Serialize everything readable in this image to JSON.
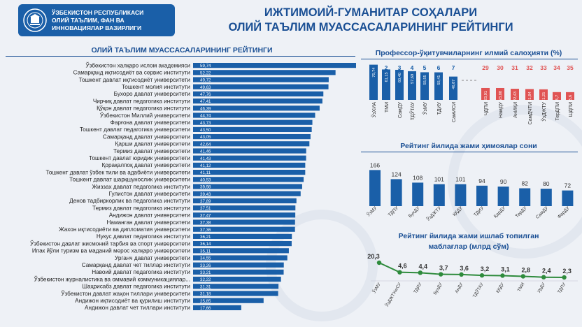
{
  "header": {
    "ministry_lines": [
      "ЎЗБЕКИСТОН РЕСПУБЛИКАСИ",
      "ОЛИЙ ТАЪЛИМ, ФАН ВА",
      "ИННОВАЦИЯЛАР ВАЗИРЛИГИ"
    ],
    "title_lines": [
      "ИЖТИМОИЙ-ГУМАНИТАР СОҲАЛАРИ",
      "ОЛИЙ ТАЪЛИМ МУАССАСАЛАРИНИНГ РЕЙТИНГИ"
    ]
  },
  "colors": {
    "primary": "#1a4f94",
    "bar_blue": "#1a5fa8",
    "accent_red": "#e05454",
    "line_green": "#2e8b3c",
    "header_bg": "#1a5fa8"
  },
  "chart_data": [
    {
      "type": "bar",
      "orientation": "horizontal",
      "title": "ОЛИЙ ТАЪЛИМ МУАССАСАЛАРИНИНГ РЕЙТИНГИ",
      "categories": [
        "Ўзбекистон халқаро ислом академияси",
        "Самарқанд иқтисодиёт ва сервис институти",
        "Тошкент давлат иқтисодиёт университети",
        "Тошкент молия институти",
        "Бухоро давлат университети",
        "Чирчиқ давлат педагогика институти",
        "Қўқон давлат педагогика институти",
        "Ўзбекистон Миллий университети",
        "Фарғона давлат университети",
        "Тошкент давлат педагогика университети",
        "Самарқанд давлат университети",
        "Қарши давлат университети",
        "Термиз давлат университети",
        "Тошкент давлат юридик университети",
        "Қорақалпоқ давлат университети",
        "Тошкент давлат ўзбек тили ва адабиёти университети",
        "Тошкент давлат шарқшунослик университети",
        "Жиззах давлат педагогика институти",
        "Гулистон давлат университети",
        "Денов тадбиркорлик ва педагогика институти",
        "Термиз давлат педагогика институти",
        "Андижон давлат университети",
        "Наманган давлат университети",
        "Жахон иқтисодиёти ва дипломатия университети",
        "Нукус давлат педагогика институти",
        "Ўзбекистон давлат жисмоний тарбия ва спорт университети",
        "Ипак йўли туризм ва маданий мерос халқаро университети",
        "Урганч давлат университети",
        "Самарқанд давлат чет тиллар институти",
        "Навоий давлат педагогика институти",
        "Ўзбекистон журналистика ва оммавий коммуникациялар...",
        "Шаҳрисабз давлат педагогика институти",
        "Ўзбекистон давлат жаҳон тиллари университети",
        "Андижон иқтисодиёт ва қурилиш институти",
        "Андижон давлат чет тиллари институти"
      ],
      "values": [
        59.74,
        52.22,
        49.72,
        49.63,
        47.76,
        47.41,
        46.39,
        44.74,
        43.73,
        43.5,
        43.05,
        42.64,
        41.46,
        41.43,
        41.12,
        41.11,
        40.53,
        39.98,
        39.43,
        37.89,
        37.51,
        37.47,
        37.38,
        37.36,
        36.21,
        36.14,
        35.11,
        34.55,
        33.26,
        33.21,
        32.22,
        31.31,
        31.18,
        25.85,
        17.66
      ],
      "value_labels": [
        "59,74",
        "52,22",
        "49,72",
        "49,63",
        "47,76",
        "47,41",
        "46,39",
        "44,74",
        "43,73",
        "43,50",
        "43,05",
        "42,64",
        "41,46",
        "41,43",
        "41,12",
        "41,11",
        "40,53",
        "39,98",
        "39,43",
        "37,89",
        "37,51",
        "37,47",
        "37,38",
        "37,36",
        "36,21",
        "36,14",
        "35,11",
        "34,55",
        "33,26",
        "33,21",
        "32,22",
        "31,31",
        "31,18",
        "25,85",
        "17,66"
      ],
      "xlim": [
        0,
        60
      ]
    },
    {
      "type": "bar",
      "title": "Профессор-ўқитувчиларнинг илмий салоҳияти (%)",
      "top_group": {
        "ranks": [
          "1",
          "2",
          "3",
          "4",
          "5",
          "6",
          "7"
        ],
        "categories": [
          "ЎзХИА",
          "ТМИ",
          "СамДУ",
          "ТДЎТАУ",
          "ЎзМУ",
          "ТДИУ",
          "СамИСИ"
        ],
        "values": [
          70.74,
          61.15,
          60.4,
          57.69,
          55.55,
          55.41,
          46.87
        ],
        "value_labels": [
          "70,74",
          "61,15",
          "60,40",
          "57,69",
          "55,55",
          "55,41",
          "46,87"
        ],
        "color": "#1a5fa8"
      },
      "bottom_group": {
        "ranks": [
          "29",
          "30",
          "31",
          "32",
          "33",
          "34",
          "35"
        ],
        "categories": [
          "ЧДПИ",
          "НамДУ",
          "АнИҚИ",
          "СамДЧТИ",
          "ЎзДЖТУ",
          "ТерДПИ",
          "ШДПИ"
        ],
        "values": [
          23.91,
          23.88,
          22.43,
          21.84,
          21.25,
          15.7,
          15.6
        ],
        "value_labels": [
          "23,91",
          "23,88",
          "22,43",
          "21,84",
          "21,25",
          "15,7",
          "15,6"
        ],
        "color": "#e05454"
      },
      "ylim": [
        0,
        80
      ]
    },
    {
      "type": "bar",
      "title": "Рейтинг йилида жами ҳимоялар сони",
      "categories": [
        "ЎзМУ",
        "ТДПУ",
        "БухДУ",
        "ЎзДЖТУ",
        "ҚҚДУ",
        "ТДИУ",
        "ҚарДУ",
        "ТерДУ",
        "СамДУ",
        "ФарДУ"
      ],
      "values": [
        166,
        124,
        108,
        101,
        101,
        94,
        90,
        82,
        80,
        72
      ],
      "ylim": [
        0,
        180
      ]
    },
    {
      "type": "line",
      "title": "Рейтинг йилида жами ишлаб топилган маблағлар (млрд сўм)",
      "categories": [
        "ЎзМУ",
        "ЎзДЖТУнгСУ",
        "ТДИУ",
        "БухДУ",
        "АнДУ",
        "ТДЎТАУ",
        "ҚҚДУ",
        "ТМИ",
        "УрДУ",
        "ТДПУ"
      ],
      "values": [
        20.3,
        4.6,
        4.4,
        3.7,
        3.6,
        3.2,
        3.1,
        2.8,
        2.4,
        2.3
      ],
      "value_labels": [
        "20,3",
        "4,6",
        "4,4",
        "3,7",
        "3,6",
        "3,2",
        "3,1",
        "2,8",
        "2,4",
        "2,3"
      ],
      "ylim": [
        0,
        22
      ]
    }
  ]
}
